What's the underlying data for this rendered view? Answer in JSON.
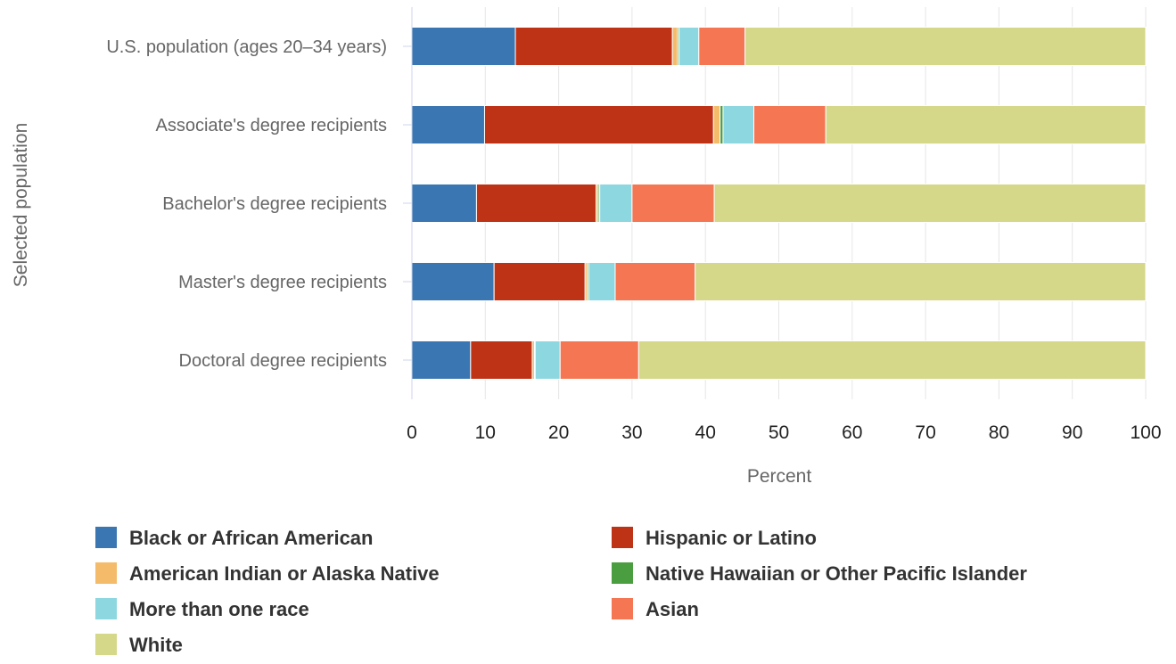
{
  "chart_data": {
    "type": "bar",
    "orientation": "horizontal",
    "stacked": true,
    "xlabel": "Percent",
    "ylabel": "Selected population",
    "xlim": [
      0,
      100
    ],
    "xticks": [
      0,
      10,
      20,
      30,
      40,
      50,
      60,
      70,
      80,
      90,
      100
    ],
    "grid": true,
    "legend_position": "bottom",
    "categories": [
      "U.S. population (ages 20–34 years)",
      "Associate's degree recipients",
      "Bachelor's degree recipients",
      "Master's degree recipients",
      "Doctoral degree recipients"
    ],
    "series": [
      {
        "name": "Black or African American",
        "color": "#3a76b1",
        "values": [
          14.1,
          9.9,
          8.8,
          11.2,
          8.0
        ]
      },
      {
        "name": "Hispanic or Latino",
        "color": "#be3216",
        "values": [
          21.4,
          31.2,
          16.3,
          12.4,
          8.4
        ]
      },
      {
        "name": "American Indian or Alaska Native",
        "color": "#f3bb6a",
        "values": [
          0.7,
          0.9,
          0.3,
          0.3,
          0.3
        ]
      },
      {
        "name": "Native Hawaiian or Other Pacific Islander",
        "color": "#4a9e3f",
        "values": [
          0.2,
          0.4,
          0.2,
          0.2,
          0.1
        ]
      },
      {
        "name": "More than one race",
        "color": "#8dd7e1",
        "values": [
          2.7,
          4.2,
          4.4,
          3.6,
          3.4
        ]
      },
      {
        "name": "Asian",
        "color": "#f47652",
        "values": [
          6.3,
          9.8,
          11.2,
          10.9,
          10.7
        ]
      },
      {
        "name": "White",
        "color": "#d5d789",
        "values": [
          54.6,
          43.6,
          58.8,
          61.4,
          69.1
        ]
      }
    ],
    "legend_order": [
      "Black or African American",
      "Hispanic or Latino",
      "American Indian or Alaska Native",
      "Native Hawaiian or Other Pacific Islander",
      "More than one race",
      "Asian",
      "White"
    ]
  }
}
